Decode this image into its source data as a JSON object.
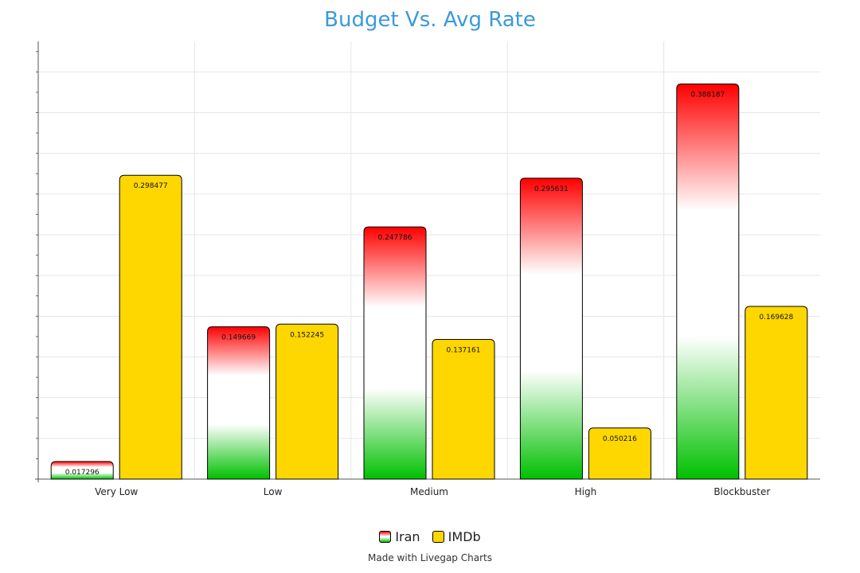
{
  "chart_data": {
    "type": "bar",
    "title": "Budget Vs. Avg Rate",
    "xlabel": "",
    "ylabel": "",
    "categories": [
      "Very Low",
      "Low",
      "Medium",
      "High",
      "Blockbuster"
    ],
    "ylim": [
      0,
      0.43
    ],
    "series": [
      {
        "name": "Iran",
        "values": [
          0.017296,
          0.149669,
          0.247786,
          0.295631,
          0.388187
        ],
        "fill": "gradient",
        "colors": [
          "#ff0000",
          "#ffffff",
          "#00c000"
        ]
      },
      {
        "name": "IMDb",
        "values": [
          0.298477,
          0.152245,
          0.137161,
          0.050216,
          0.169628
        ],
        "fill": "solid",
        "colors": [
          "#ffd700"
        ]
      }
    ],
    "grid": true,
    "legend": "bottom-center",
    "data_labels": [
      "0.017296",
      "0.298477",
      "0.149669",
      "0.152245",
      "0.247786",
      "0.137161",
      "0.295631",
      "0.050216",
      "0.388187",
      "0.169628"
    ]
  },
  "credit": "Made with Livegap Charts"
}
